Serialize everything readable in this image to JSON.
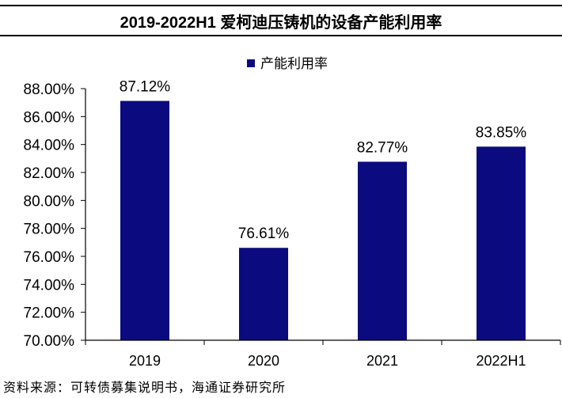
{
  "title": "2019-2022H1 爱柯迪压铸机的设备产能利用率",
  "source": "资料来源：可转债募集说明书，海通证券研究所",
  "chart_data": {
    "type": "bar",
    "categories": [
      "2019",
      "2020",
      "2021",
      "2022H1"
    ],
    "series": [
      {
        "name": "产能利用率",
        "values": [
          87.12,
          76.61,
          82.77,
          83.85
        ]
      }
    ],
    "data_labels": [
      "87.12%",
      "76.61%",
      "82.77%",
      "83.85%"
    ],
    "ylim": [
      70,
      88
    ],
    "yticks": [
      70,
      72,
      74,
      76,
      78,
      80,
      82,
      84,
      86,
      88
    ],
    "ytick_labels": [
      "70.00%",
      "72.00%",
      "74.00%",
      "76.00%",
      "78.00%",
      "80.00%",
      "82.00%",
      "84.00%",
      "86.00%",
      "88.00%"
    ],
    "xlabel": "",
    "ylabel": "",
    "grid": false,
    "legend_position": "top-center",
    "colors": {
      "bar": "#0B0B7F",
      "axis": "#000000",
      "text": "#000000"
    }
  }
}
